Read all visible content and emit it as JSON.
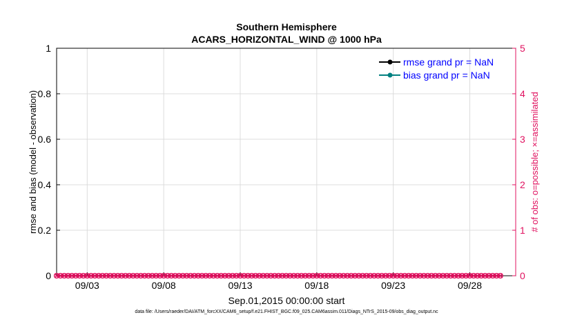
{
  "chart_data": {
    "type": "line",
    "title": "Southern Hemisphere",
    "subtitle": "ACARS_HORIZONTAL_WIND @ 1000 hPa",
    "xlabel": "Sep.01,2015 00:00:00 start",
    "ylabel_left": "rmse and bias (model - observation)",
    "ylabel_right": "# of obs: o=possible; ×=assimilated",
    "x_ticks": [
      "09/03",
      "09/08",
      "09/13",
      "09/18",
      "09/23",
      "09/28"
    ],
    "xlim": [
      "2015-09-01",
      "2015-10-01"
    ],
    "x_tick_days": [
      3,
      8,
      13,
      18,
      23,
      28
    ],
    "y_left_ticks": [
      "0",
      "0.2",
      "0.4",
      "0.6",
      "0.8",
      "1"
    ],
    "ylim_left": [
      0,
      1
    ],
    "y_right_ticks": [
      "0",
      "1",
      "2",
      "3",
      "4",
      "5"
    ],
    "ylim_right": [
      0,
      5
    ],
    "grid": true,
    "legend_position": "top-right",
    "series": [
      {
        "name": "rmse grand pr = NaN",
        "color": "#000000",
        "marker": "filled-circle",
        "values": []
      },
      {
        "name": "bias grand pr = NaN",
        "color": "#008080",
        "marker": "filled-circle",
        "values": []
      },
      {
        "color": "#e0115f",
        "marker": "circle",
        "axis": "right",
        "values_note": "all zero",
        "count_days": [
          1,
          30
        ],
        "obs_per_day": 4,
        "value": 0
      },
      {
        "color": "#e0115f",
        "marker": "x",
        "axis": "right",
        "value": 0
      }
    ],
    "colors": {
      "left_axis": "#000000",
      "right_axis": "#e0115f",
      "legend_text": "#0000ff",
      "grid": "#dcdcdc"
    },
    "footnote": "data file: /Users/raeder/DAI/ATM_forcXX/CAM6_setup/f.e21.FHIST_BGC.f09_025.CAM6assim.011/Diags_NTrS_2015-09/obs_diag_output.nc"
  }
}
